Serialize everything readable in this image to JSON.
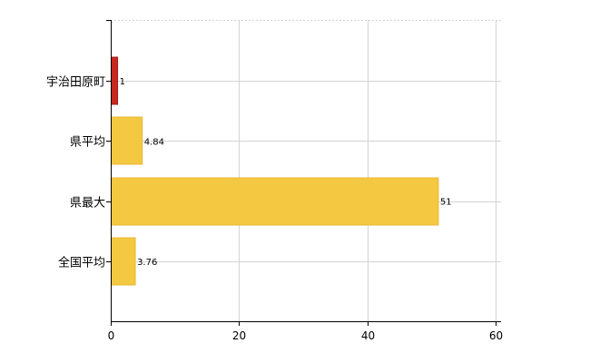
{
  "chart_data": {
    "type": "bar",
    "orientation": "horizontal",
    "categories": [
      "宇治田原町",
      "県平均",
      "県最大",
      "全国平均"
    ],
    "values": [
      1,
      4.84,
      51,
      3.76
    ],
    "data_labels": [
      "1",
      "4.84",
      "51",
      "3.76"
    ],
    "bar_colors": [
      "#c8281e",
      "#f5c842",
      "#f5c842",
      "#f5c842"
    ],
    "bar_border_colors": [
      "#a01e16",
      "#e8b830",
      "#e8b830",
      "#e8b830"
    ],
    "xlim": [
      0,
      60
    ],
    "x_ticks": [
      0,
      20,
      40,
      60
    ],
    "grid": true,
    "legend": "none",
    "title": "",
    "xlabel": "",
    "ylabel": ""
  }
}
